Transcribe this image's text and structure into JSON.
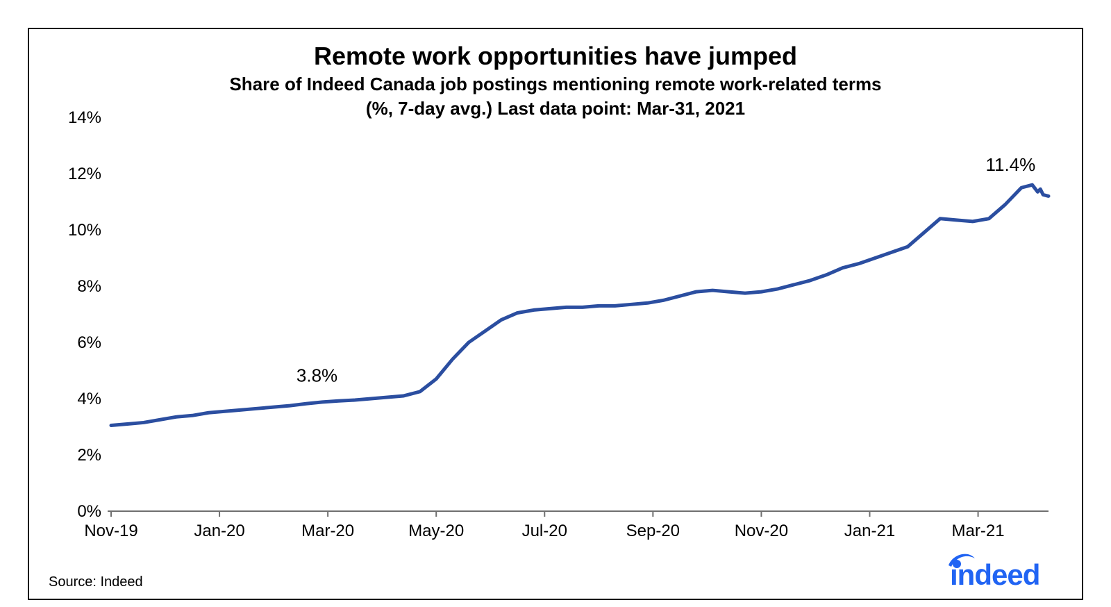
{
  "chart": {
    "type": "line",
    "title": "Remote work opportunities have jumped",
    "title_fontsize": 36,
    "subtitle_line1": "Share of Indeed Canada job postings mentioning remote work-related terms",
    "subtitle_line2": "(%, 7-day avg.) Last data point: Mar-31, 2021",
    "subtitle_fontsize": 26,
    "background_color": "#ffffff",
    "border_color": "#000000",
    "line_color": "#2b4ea0",
    "line_width": 5,
    "axis_color": "#6f6f6f",
    "tick_label_color": "#000000",
    "tick_label_fontsize": 24,
    "annotation_fontsize": 26,
    "ylim": [
      0,
      14
    ],
    "ytick_step": 2,
    "yticks": [
      "0%",
      "2%",
      "4%",
      "6%",
      "8%",
      "10%",
      "12%",
      "14%"
    ],
    "xlim_months": [
      0,
      17
    ],
    "xtick_positions": [
      0,
      2,
      4,
      6,
      8,
      10,
      12,
      14,
      16
    ],
    "xticks": [
      "Nov-19",
      "Jan-20",
      "Mar-20",
      "May-20",
      "Jul-20",
      "Sep-20",
      "Nov-20",
      "Jan-21",
      "Mar-21"
    ],
    "series": {
      "x": [
        0.0,
        0.3,
        0.6,
        0.9,
        1.2,
        1.5,
        1.8,
        2.1,
        2.4,
        2.7,
        3.0,
        3.3,
        3.6,
        3.9,
        4.2,
        4.5,
        4.8,
        5.1,
        5.4,
        5.7,
        6.0,
        6.3,
        6.6,
        6.9,
        7.2,
        7.5,
        7.8,
        8.1,
        8.4,
        8.7,
        9.0,
        9.3,
        9.6,
        9.9,
        10.2,
        10.5,
        10.8,
        11.1,
        11.4,
        11.7,
        12.0,
        12.3,
        12.6,
        12.9,
        13.2,
        13.5,
        13.8,
        14.1,
        14.4,
        14.7,
        15.0,
        15.3,
        15.6,
        15.9,
        16.2,
        16.5,
        16.8,
        17.0
      ],
      "y": [
        3.05,
        3.1,
        3.15,
        3.25,
        3.35,
        3.4,
        3.5,
        3.55,
        3.6,
        3.65,
        3.7,
        3.75,
        3.82,
        3.88,
        3.92,
        3.95,
        4.0,
        4.05,
        4.1,
        4.25,
        4.7,
        5.4,
        6.0,
        6.4,
        6.8,
        7.05,
        7.15,
        7.2,
        7.25,
        7.25,
        7.3,
        7.3,
        7.35,
        7.4,
        7.5,
        7.65,
        7.8,
        7.85,
        7.8,
        7.75,
        7.8,
        7.9,
        8.05,
        8.2,
        8.4,
        8.65,
        8.8,
        9.0,
        9.2,
        9.4,
        9.9,
        10.4,
        10.35,
        10.3,
        10.4,
        10.9,
        11.5,
        11.6
      ]
    },
    "series_tail": {
      "x": [
        17.0,
        17.1,
        17.15,
        17.2,
        17.3
      ],
      "y": [
        11.6,
        11.35,
        11.45,
        11.25,
        11.2
      ]
    },
    "annotations": [
      {
        "text": "3.8%",
        "x_month": 3.8,
        "y_value": 4.6,
        "anchor": "middle"
      },
      {
        "text": "11.4%",
        "x_month": 16.6,
        "y_value": 12.1,
        "anchor": "middle"
      }
    ]
  },
  "footer": {
    "source_label": "Source: Indeed",
    "source_fontsize": 20,
    "logo_color": "#2164f3",
    "logo_text": "indeed",
    "logo_fontsize": 42
  }
}
